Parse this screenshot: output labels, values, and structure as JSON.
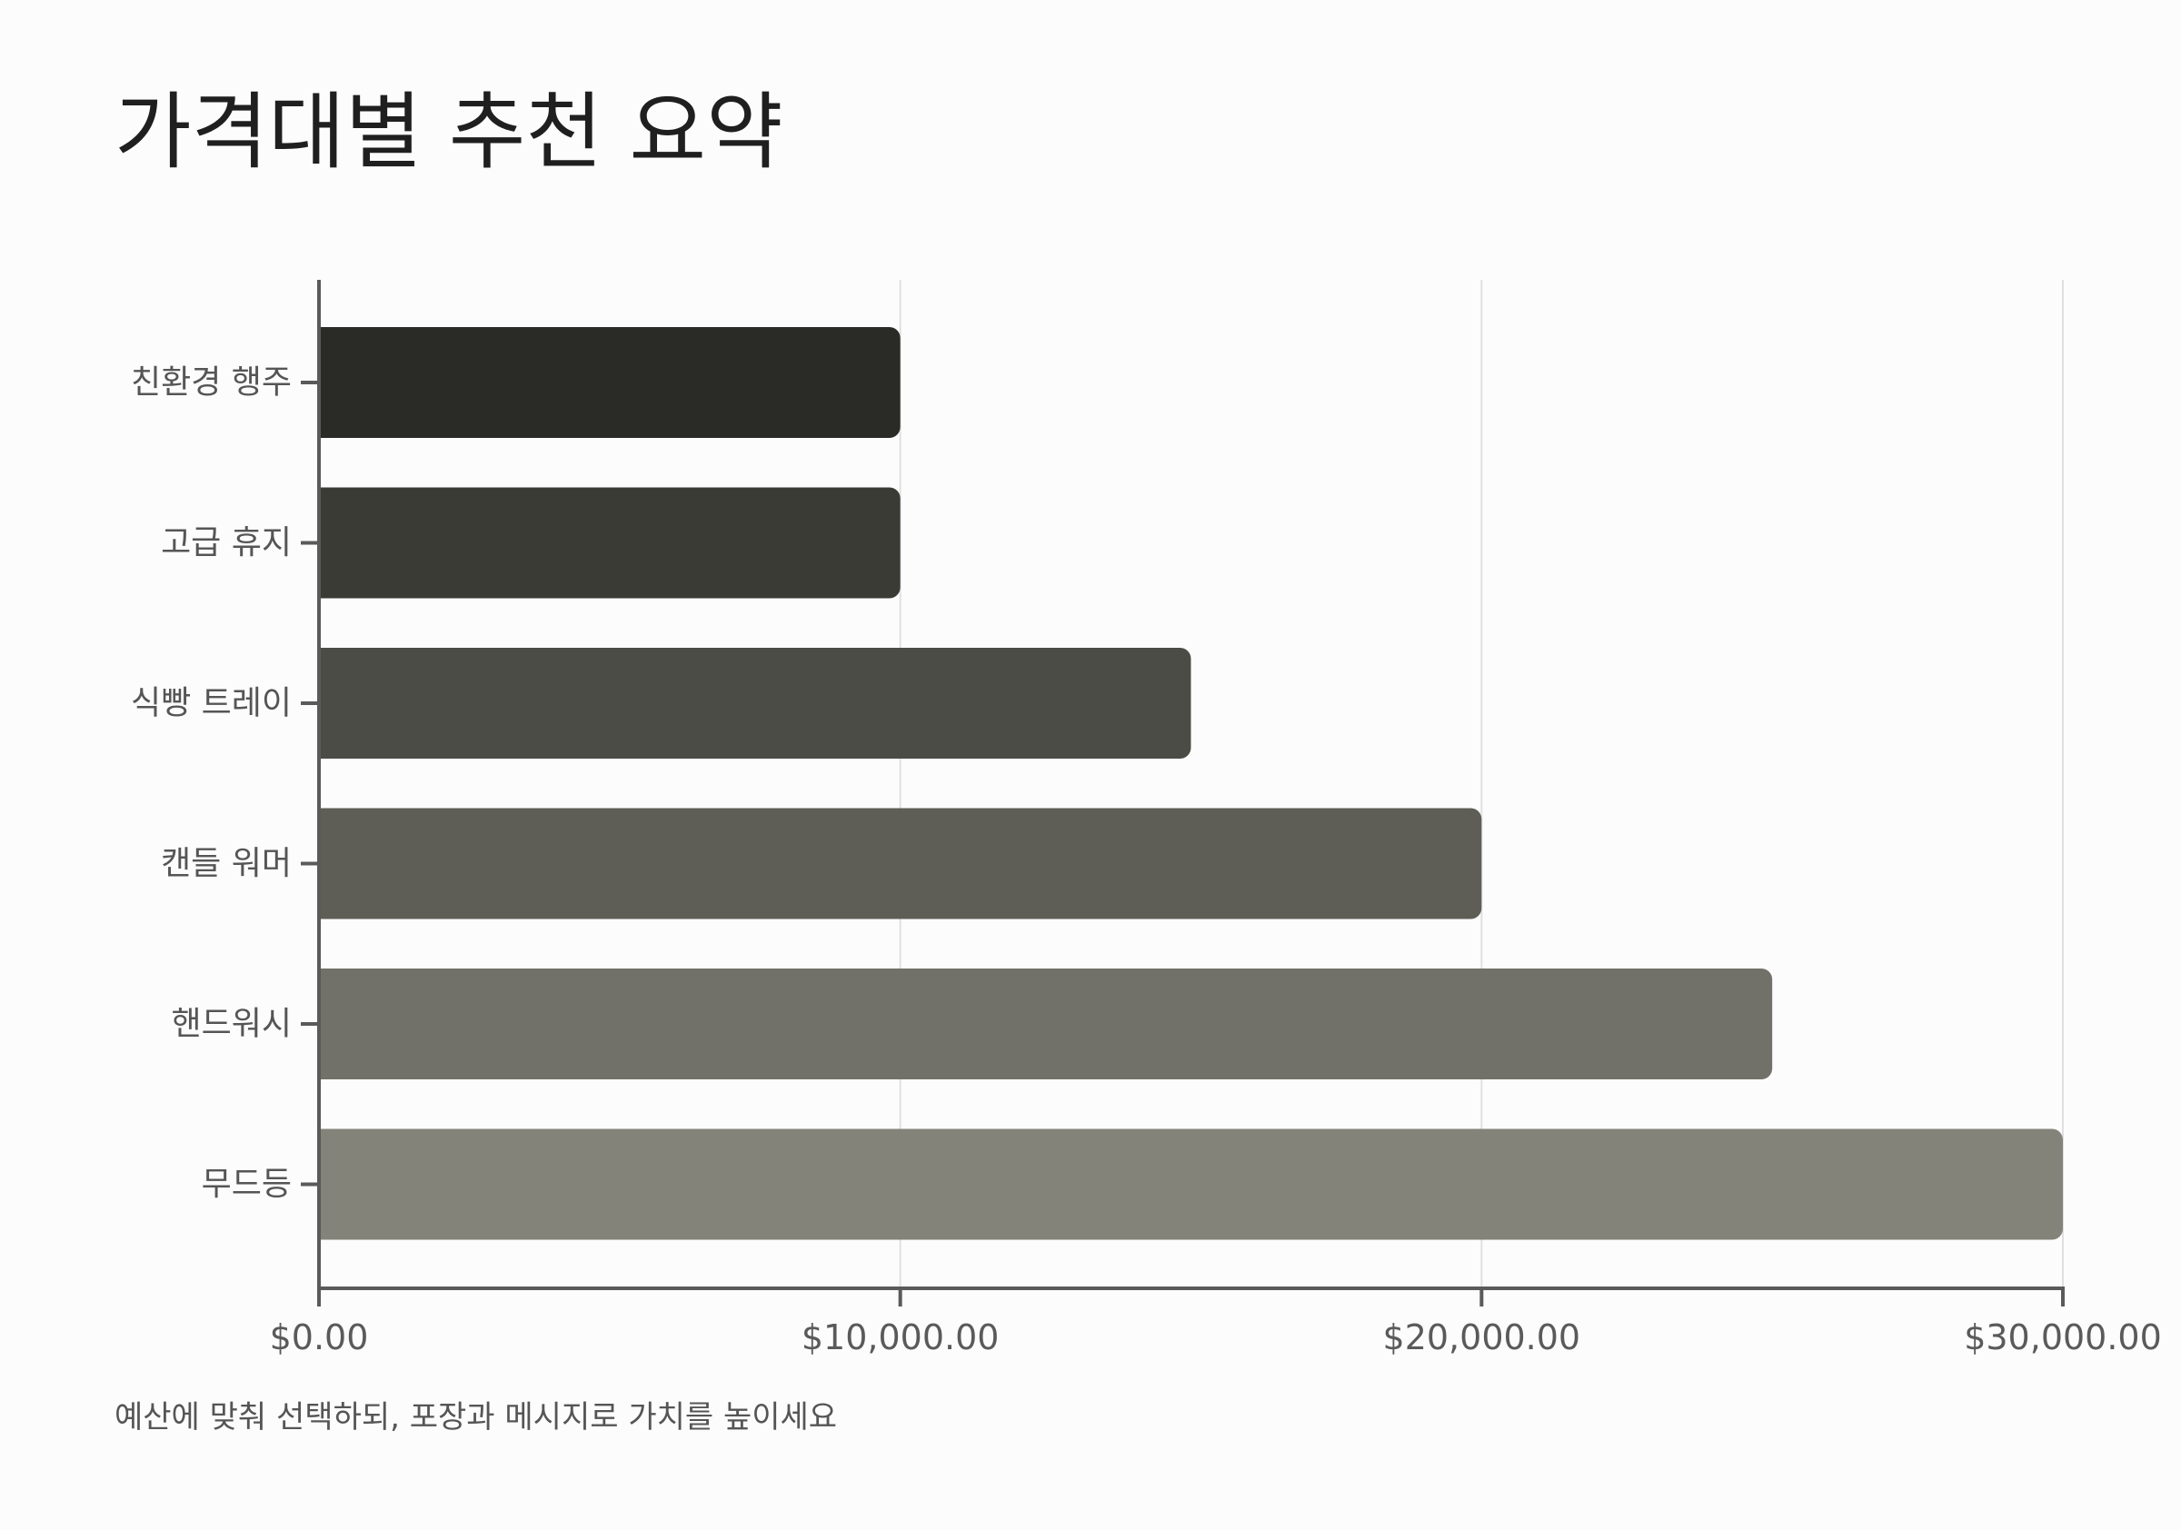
{
  "chart_data": {
    "type": "bar",
    "orientation": "horizontal",
    "title": "가격대별 추천 요약",
    "subtitle": "예산에 맞춰 선택하되, 포장과 메시지로 가치를 높이세요",
    "categories": [
      "친환경 행주",
      "고급 휴지",
      "식빵 트레이",
      "캔들 워머",
      "핸드워시",
      "무드등"
    ],
    "values": [
      10000,
      10000,
      15000,
      20000,
      25000,
      30000
    ],
    "bar_colors": [
      "#2a2a26",
      "#3b3b36",
      "#4c4c46",
      "#5e5e57",
      "#717169",
      "#838379"
    ],
    "xlim": [
      0,
      30000
    ],
    "xticks": [
      0,
      10000,
      20000,
      30000
    ],
    "xtick_labels": [
      "$0.00",
      "$10,000.00",
      "$20,000.00",
      "$30,000.00"
    ],
    "xlabel": "",
    "ylabel": "",
    "grid": "vertical",
    "legend": "none"
  }
}
